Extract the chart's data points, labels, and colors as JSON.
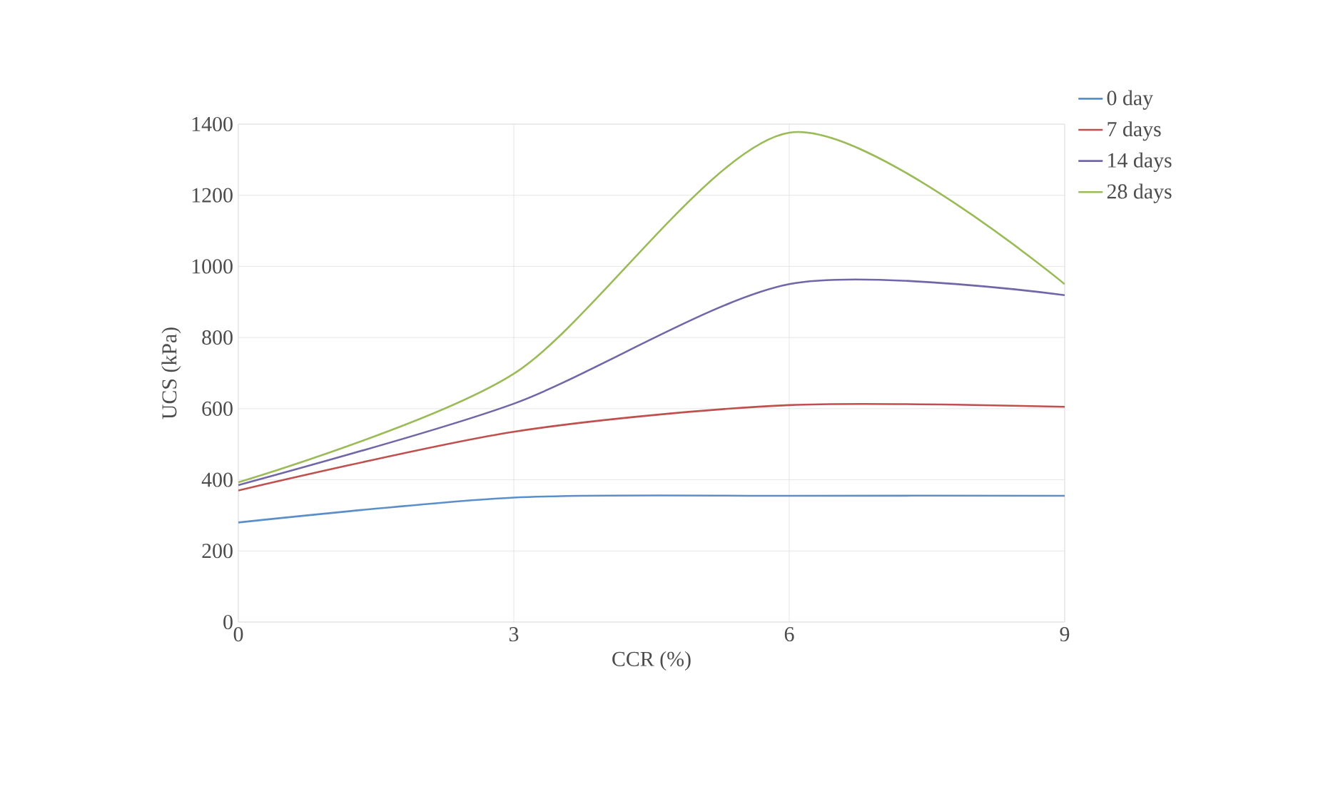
{
  "chart_data": {
    "type": "line",
    "xlabel": "CCR (%)",
    "ylabel": "UCS (kPa)",
    "x": [
      0,
      3,
      6,
      9
    ],
    "xlim": [
      0,
      9
    ],
    "xticks": [
      0,
      3,
      6,
      9
    ],
    "ylim": [
      0,
      1400
    ],
    "yticks": [
      0,
      200,
      400,
      600,
      800,
      1000,
      1200,
      1400
    ],
    "grid": true,
    "legend": "right",
    "marker": "none",
    "line_style": "solid",
    "series": [
      {
        "name": "0 day",
        "color": "#5b8fc9",
        "values": [
          280,
          350,
          355,
          355
        ]
      },
      {
        "name": "7 days",
        "color": "#c0504d",
        "values": [
          370,
          535,
          610,
          605
        ]
      },
      {
        "name": "14 days",
        "color": "#7066a8",
        "values": [
          385,
          614,
          950,
          919
        ]
      },
      {
        "name": "28 days",
        "color": "#9bbb59",
        "values": [
          393,
          698,
          1376,
          950
        ]
      }
    ]
  }
}
